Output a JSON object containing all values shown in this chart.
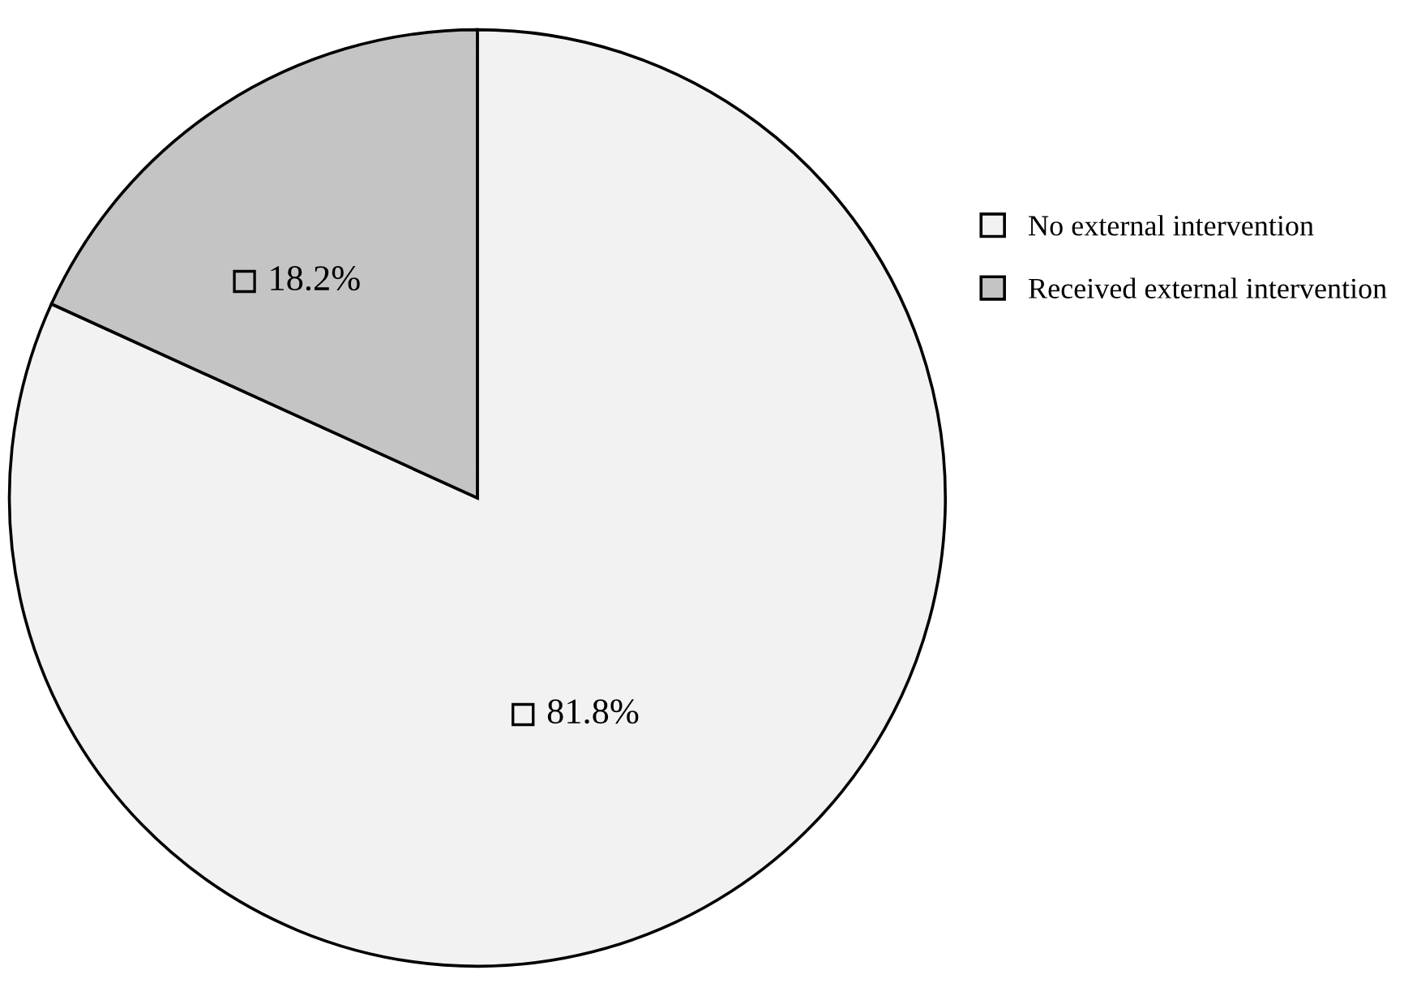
{
  "chart_data": {
    "type": "pie",
    "categories": [
      "No external intervention",
      "Received external intervention"
    ],
    "values": [
      81.8,
      18.2
    ],
    "colors": [
      "#f2f2f2",
      "#c4c4c4"
    ],
    "value_labels": [
      "81.8%",
      "18.2%"
    ],
    "legend": "right"
  }
}
